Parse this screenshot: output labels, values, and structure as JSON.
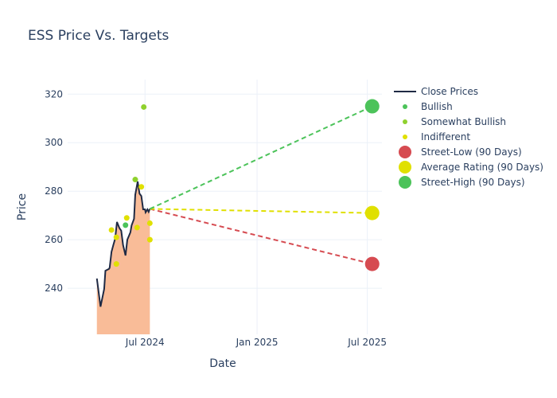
{
  "chart_data": {
    "type": "line",
    "title": "ESS Price Vs. Targets",
    "xlabel": "Date",
    "ylabel": "Price",
    "ylim": [
      221,
      326
    ],
    "xlim": [
      "2024-02-25",
      "2025-07-25"
    ],
    "yticks": [
      240,
      260,
      280,
      300,
      320
    ],
    "xticks": [
      {
        "date": "2024-07-01",
        "label": "Jul 2024"
      },
      {
        "date": "2025-01-01",
        "label": "Jan 2025"
      },
      {
        "date": "2025-07-01",
        "label": "Jul 2025"
      }
    ],
    "grid": true,
    "legend_position": "right",
    "close_prices": {
      "name": "Close Prices",
      "color": "#1f2a44",
      "fill": "#f9bc98",
      "dates": [
        "2024-04-13",
        "2024-04-19",
        "2024-04-25",
        "2024-04-27",
        "2024-05-03",
        "2024-05-04",
        "2024-05-07",
        "2024-05-10",
        "2024-05-13",
        "2024-05-16",
        "2024-05-20",
        "2024-05-23",
        "2024-05-26",
        "2024-05-30",
        "2024-06-02",
        "2024-06-07",
        "2024-06-09",
        "2024-06-13",
        "2024-06-15",
        "2024-06-19",
        "2024-06-22",
        "2024-06-25",
        "2024-06-28",
        "2024-07-01",
        "2024-07-02",
        "2024-07-05",
        "2024-07-07",
        "2024-07-09"
      ],
      "values": [
        244,
        232.4,
        239.7,
        247.2,
        248,
        248.5,
        255,
        257.8,
        260.4,
        267.3,
        264.8,
        263.7,
        257.8,
        253.5,
        260,
        263,
        265.9,
        268.6,
        278.5,
        284,
        279,
        278,
        272.5,
        272.5,
        271.3,
        272.5,
        271.5,
        272.7
      ]
    },
    "ratings": [
      {
        "name": "Bullish",
        "color": "#4cc35a",
        "points": [
          [
            "2024-05-30",
            266
          ]
        ]
      },
      {
        "name": "Somewhat Bullish",
        "color": "#8fd12e",
        "points": [
          [
            "2024-06-29",
            314.7
          ],
          [
            "2024-06-15",
            284.8
          ]
        ]
      },
      {
        "name": "Indifferent",
        "color": "#e0e000",
        "points": [
          [
            "2024-06-25",
            281.8
          ],
          [
            "2024-05-07",
            264
          ],
          [
            "2024-05-15",
            261
          ],
          [
            "2024-06-01",
            269
          ],
          [
            "2024-06-18",
            265
          ],
          [
            "2024-05-15",
            250
          ],
          [
            "2024-07-09",
            266.8
          ],
          [
            "2024-07-09",
            260
          ]
        ]
      }
    ],
    "targets": {
      "start": [
        "2024-07-09",
        272.7
      ],
      "date": "2025-07-09",
      "series": [
        {
          "name": "Street-Low (90 Days)",
          "value": 250,
          "color": "#d64b51"
        },
        {
          "name": "Average Rating (90 Days)",
          "value": 271,
          "color": "#e0e000"
        },
        {
          "name": "Street-High (90 Days)",
          "value": 315,
          "color": "#4cc35a"
        }
      ]
    }
  }
}
